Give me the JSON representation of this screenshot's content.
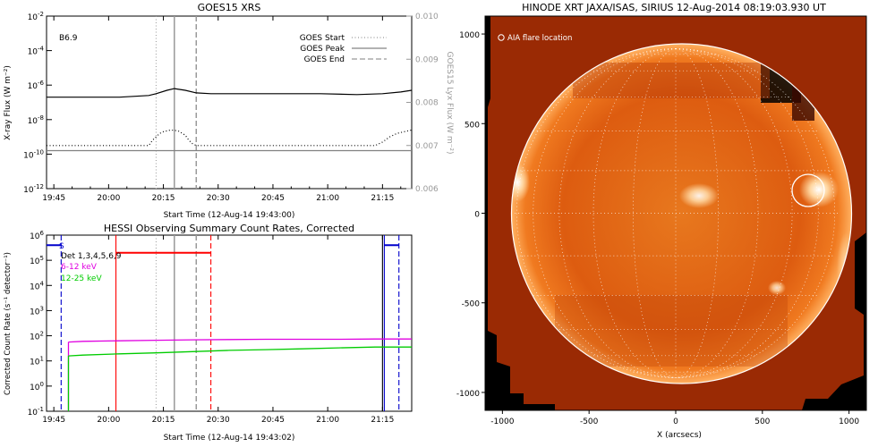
{
  "chart_data": [
    {
      "type": "line",
      "title": "GOES15 XRS",
      "annotation": "B6.9",
      "xlabel": "Start Time (12-Aug-14 19:43:00)",
      "ylabel": "X-ray Flux (W m⁻²)",
      "y2label": "GOES15 Lyx Flux (W m⁻²)",
      "x_ticks": [
        "19:45",
        "20:00",
        "20:15",
        "20:30",
        "20:45",
        "21:00",
        "21:15"
      ],
      "x_tick_minutes": [
        2,
        17,
        32,
        47,
        62,
        77,
        92
      ],
      "xlim_minutes": [
        0,
        100
      ],
      "y_log_range": [
        -12,
        -2
      ],
      "y_ticks": [
        {
          "base": "10",
          "exp": "-2",
          "v": -2
        },
        {
          "base": "10",
          "exp": "-4",
          "v": -4
        },
        {
          "base": "10",
          "exp": "-6",
          "v": -6
        },
        {
          "base": "10",
          "exp": "-8",
          "v": -8
        },
        {
          "base": "10",
          "exp": "-10",
          "v": -10
        },
        {
          "base": "10",
          "exp": "-12",
          "v": -12
        }
      ],
      "y2_ticks": [
        "0.010",
        "0.009",
        "0.008",
        "0.007",
        "0.006"
      ],
      "y2_tick_values": [
        0.01,
        0.009,
        0.008,
        0.007,
        0.006
      ],
      "y2lim": [
        0.006,
        0.01
      ],
      "legend": [
        {
          "label": "GOES Start",
          "style": "dotted"
        },
        {
          "label": "GOES Peak",
          "style": "solid"
        },
        {
          "label": "GOES End",
          "style": "dashed"
        }
      ],
      "event_lines_minutes": {
        "start": 30,
        "peak": 35,
        "end": 41
      },
      "series": [
        {
          "color": "#000000",
          "style": "solid",
          "y_axis": "left-log",
          "x": [
            0,
            10,
            20,
            28,
            30,
            33,
            35,
            38,
            41,
            45,
            55,
            65,
            75,
            85,
            92,
            97,
            100
          ],
          "y": [
            -6.7,
            -6.7,
            -6.7,
            -6.6,
            -6.5,
            -6.3,
            -6.2,
            -6.3,
            -6.45,
            -6.5,
            -6.5,
            -6.5,
            -6.5,
            -6.55,
            -6.5,
            -6.4,
            -6.3
          ]
        },
        {
          "color": "#000000",
          "style": "dotted",
          "y_axis": "left-log",
          "x": [
            0,
            20,
            28,
            29,
            30,
            31,
            32,
            34,
            36,
            38,
            39,
            40,
            41,
            42,
            90,
            92,
            94,
            96,
            98,
            100
          ],
          "y": [
            -9.5,
            -9.5,
            -9.5,
            -9.2,
            -9.0,
            -8.8,
            -8.7,
            -8.6,
            -8.65,
            -8.9,
            -9.2,
            -9.4,
            -9.5,
            -9.5,
            -9.5,
            -9.3,
            -9.0,
            -8.8,
            -8.7,
            -8.6
          ]
        },
        {
          "color": "#808080",
          "style": "solid",
          "y_axis": "left-log",
          "x": [
            0,
            20,
            40,
            60,
            80,
            100
          ],
          "y": [
            -9.8,
            -9.8,
            -9.8,
            -9.8,
            -9.8,
            -9.8
          ]
        }
      ]
    },
    {
      "type": "line",
      "title": "HESSI Observing Summary Count Rates, Corrected",
      "xlabel": "Start Time (12-Aug-14 19:43:02)",
      "ylabel": "Corrected Count Rate (s⁻¹ detector⁻¹)",
      "x_ticks": [
        "19:45",
        "20:00",
        "20:15",
        "20:30",
        "20:45",
        "21:00",
        "21:15"
      ],
      "x_tick_minutes": [
        2,
        17,
        32,
        47,
        62,
        77,
        92
      ],
      "xlim_minutes": [
        0,
        100
      ],
      "y_log_range": [
        -1,
        6
      ],
      "y_ticks": [
        {
          "base": "10",
          "exp": "6",
          "v": 6
        },
        {
          "base": "10",
          "exp": "5",
          "v": 5
        },
        {
          "base": "10",
          "exp": "4",
          "v": 4
        },
        {
          "base": "10",
          "exp": "3",
          "v": 3
        },
        {
          "base": "10",
          "exp": "2",
          "v": 2
        },
        {
          "base": "10",
          "exp": "1",
          "v": 1
        },
        {
          "base": "10",
          "exp": "0",
          "v": 0
        },
        {
          "base": "10",
          "exp": "-1",
          "v": -1
        }
      ],
      "legend": [
        {
          "label": "S",
          "color": "#0000cc"
        },
        {
          "label": "Det 1,3,4,5,6,9",
          "color": "#000000"
        },
        {
          "label": "6-12 keV",
          "color": "#e000e0"
        },
        {
          "label": "12-25 keV",
          "color": "#00cc00"
        }
      ],
      "event_lines_minutes": {
        "start": 30,
        "peak": 35,
        "end": 41
      },
      "vertical_markers": [
        {
          "x": 4,
          "color": "#0000cc",
          "style": "dashed"
        },
        {
          "x": 19,
          "color": "#ff0000",
          "style": "solid"
        },
        {
          "x": 45,
          "color": "#ff0000",
          "style": "dashed"
        },
        {
          "x": 92,
          "color": "#000000",
          "style": "solid"
        },
        {
          "x": 92.5,
          "color": "#0000cc",
          "style": "solid"
        },
        {
          "x": 96.5,
          "color": "#0000cc",
          "style": "dashed"
        }
      ],
      "flag_bars": [
        {
          "x": [
            0,
            4
          ],
          "y": 5.6,
          "color": "#0000cc"
        },
        {
          "x": [
            19,
            45
          ],
          "y": 5.3,
          "color": "#ff0000"
        },
        {
          "x": [
            92.5,
            96.5
          ],
          "y": 5.6,
          "color": "#0000cc"
        }
      ],
      "series": [
        {
          "name": "6-12 keV",
          "color": "#e000e0",
          "x": [
            6,
            10,
            20,
            30,
            40,
            50,
            60,
            70,
            80,
            90,
            92,
            97,
            97.5,
            100
          ],
          "y": [
            1.75,
            1.78,
            1.8,
            1.82,
            1.84,
            1.85,
            1.86,
            1.86,
            1.86,
            1.87,
            1.87,
            1.87,
            1.87,
            1.87
          ]
        },
        {
          "name": "12-25 keV",
          "color": "#00cc00",
          "x": [
            6,
            10,
            20,
            30,
            40,
            50,
            60,
            70,
            80,
            90,
            92,
            97,
            97.5,
            100
          ],
          "y": [
            1.2,
            1.23,
            1.28,
            1.32,
            1.37,
            1.42,
            1.45,
            1.48,
            1.52,
            1.55,
            1.55,
            1.55,
            1.55,
            1.55
          ]
        }
      ]
    },
    {
      "type": "image",
      "title": "HINODE XRT JAXA/ISAS, SIRIUS 12-Aug-2014 08:19:03.930 UT",
      "annotation": "AIA flare location",
      "xlabel": "X (arcsecs)",
      "x_ticks": [
        "-1000",
        "-500",
        "0",
        "500",
        "1000"
      ],
      "x_tick_values": [
        -1000,
        -500,
        0,
        500,
        1000
      ],
      "y_ticks": [
        "1000",
        "500",
        "0",
        "-500",
        "-1000"
      ],
      "y_tick_values": [
        1000,
        500,
        0,
        -500,
        -1000
      ],
      "xlim": [
        -1100,
        1100
      ],
      "ylim": [
        -1100,
        1100
      ],
      "solar_radius_arcsec": 950,
      "flare_location_arcsec": [
        710,
        130
      ]
    }
  ]
}
